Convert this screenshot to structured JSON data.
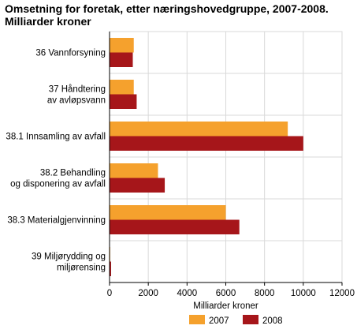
{
  "chart_data": {
    "type": "bar",
    "orientation": "horizontal",
    "title_line1": "Omsetning for foretak, etter næringshovedgruppe, 2007-2008.",
    "title_line2": "Milliarder kroner",
    "xlabel": "Milliarder kroner",
    "ylabel": "",
    "xlim": [
      0,
      12000
    ],
    "xticks": [
      0,
      2000,
      4000,
      6000,
      8000,
      10000,
      12000
    ],
    "xtick_labels": [
      "0",
      "2000",
      "4000",
      "6000",
      "8000",
      "10000",
      "12000"
    ],
    "grid": true,
    "legend_position": "bottom",
    "categories": [
      [
        "36 Vannforsyning"
      ],
      [
        "37 Håndtering",
        "av avløpsvann"
      ],
      [
        "38.1 Innsamling av avfall"
      ],
      [
        "38.2 Behandling",
        "og disponering av avfall"
      ],
      [
        "38.3 Materialgjenvinning"
      ],
      [
        "39 Miljørydding og",
        "miljørensing"
      ]
    ],
    "series": [
      {
        "name": "2007",
        "color": "#f5a12d",
        "values": [
          1250,
          1250,
          9200,
          2500,
          6000,
          20
        ]
      },
      {
        "name": "2008",
        "color": "#a6161a",
        "values": [
          1200,
          1400,
          10000,
          2850,
          6700,
          80
        ]
      }
    ]
  }
}
